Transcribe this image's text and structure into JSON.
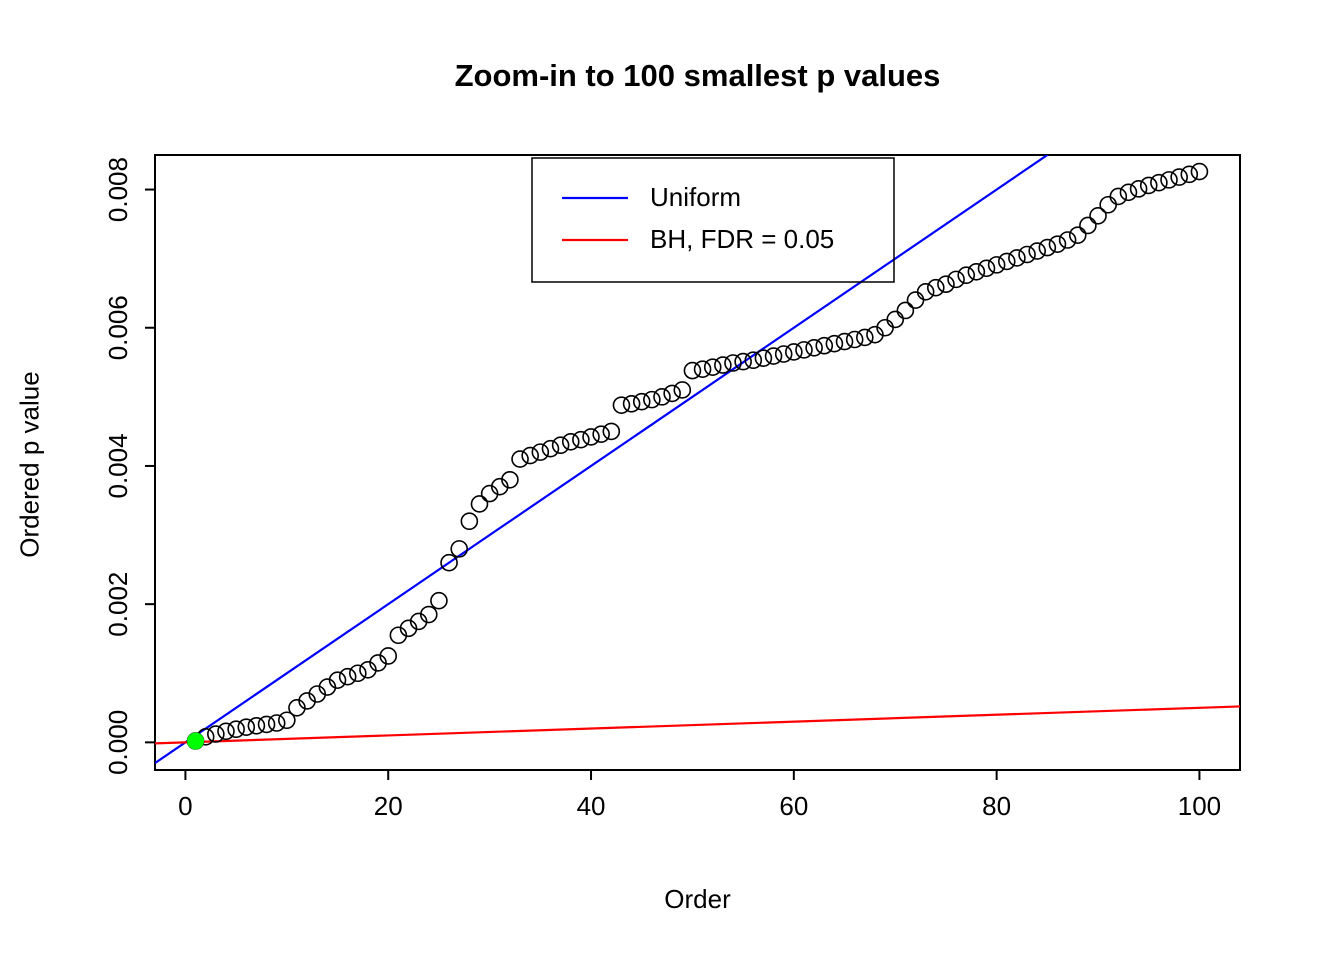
{
  "chart_data": {
    "type": "scatter",
    "title": "Zoom-in to 100 smallest p values",
    "xlabel": "Order",
    "ylabel": "Ordered p value",
    "xlim": [
      -3,
      104
    ],
    "ylim": [
      -0.0004,
      0.0085
    ],
    "xticks": [
      0,
      20,
      40,
      60,
      80,
      100
    ],
    "ytick_labels": [
      "0.000",
      "0.002",
      "0.004",
      "0.006",
      "0.008"
    ],
    "x_note": "x values are order indices 1..100",
    "ordered_p_values": [
      2e-05,
      8e-05,
      0.00012,
      0.00016,
      0.00019,
      0.00022,
      0.00024,
      0.00026,
      0.00028,
      0.00032,
      0.0005,
      0.0006,
      0.0007,
      0.0008,
      0.0009,
      0.00095,
      0.001,
      0.00105,
      0.00115,
      0.00125,
      0.00155,
      0.00165,
      0.00175,
      0.00185,
      0.00205,
      0.0026,
      0.0028,
      0.0032,
      0.00345,
      0.0036,
      0.0037,
      0.0038,
      0.0041,
      0.00415,
      0.0042,
      0.00425,
      0.0043,
      0.00435,
      0.00438,
      0.00442,
      0.00446,
      0.0045,
      0.00488,
      0.0049,
      0.00493,
      0.00496,
      0.005,
      0.00505,
      0.0051,
      0.00538,
      0.0054,
      0.00543,
      0.00546,
      0.00549,
      0.00551,
      0.00553,
      0.00556,
      0.00559,
      0.00562,
      0.00565,
      0.00568,
      0.00571,
      0.00574,
      0.00577,
      0.0058,
      0.00583,
      0.00586,
      0.0059,
      0.006,
      0.00612,
      0.00625,
      0.0064,
      0.00652,
      0.00658,
      0.00663,
      0.0067,
      0.00676,
      0.00681,
      0.00686,
      0.00691,
      0.00696,
      0.00701,
      0.00706,
      0.00711,
      0.00716,
      0.00721,
      0.00727,
      0.00734,
      0.00748,
      0.00762,
      0.00778,
      0.0079,
      0.00796,
      0.00801,
      0.00806,
      0.0081,
      0.00814,
      0.00818,
      0.00822,
      0.00826
    ],
    "highlight_point": {
      "order": 1,
      "p": 2e-05,
      "color": "#00ff00"
    },
    "lines": [
      {
        "name": "Uniform",
        "color": "#0000ff",
        "slope": 0.0001,
        "intercept": 0
      },
      {
        "name": "BH, FDR = 0.05",
        "color": "#ff0000",
        "slope": 5e-06,
        "intercept": 0
      }
    ],
    "legend": {
      "position": "top-center-inside",
      "entries": [
        {
          "label": "Uniform",
          "color": "#0000ff"
        },
        {
          "label": "BH, FDR = 0.05",
          "color": "#ff0000"
        }
      ]
    },
    "grid": false,
    "point_style": {
      "shape": "open-circle",
      "color": "#000000"
    },
    "colors": {
      "background": "#ffffff",
      "axis": "#000000"
    }
  }
}
